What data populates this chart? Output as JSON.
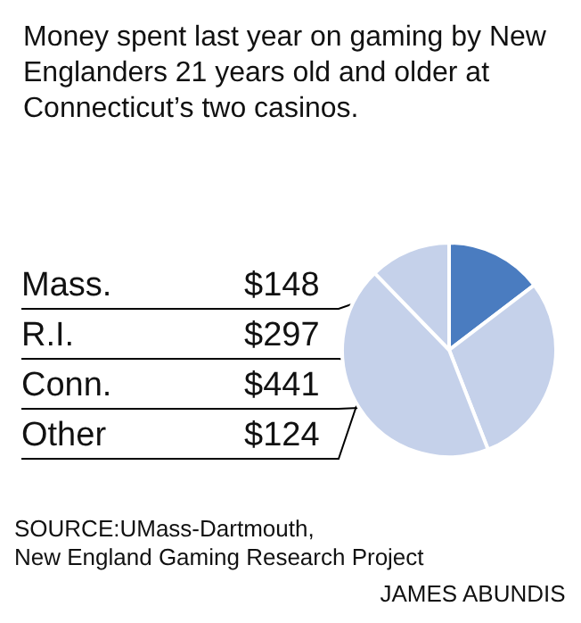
{
  "chart_data": {
    "type": "pie",
    "title": "Money spent last year on gaming by New Englanders 21 years old and older at Connecticut’s two casinos.",
    "categories": [
      "Mass.",
      "R.I.",
      "Conn.",
      "Other"
    ],
    "values": [
      148,
      297,
      441,
      124
    ],
    "value_labels": [
      "$148",
      "$297",
      "$441",
      "$124"
    ],
    "colors": [
      "#4a7cc0",
      "#c5d1ea",
      "#c5d1ea",
      "#c5d1ea"
    ],
    "annotations": [
      "SOURCE:UMass-Dartmouth,\nNew England Gaming Research Project",
      "JAMES ABUNDIS"
    ],
    "legend": false
  }
}
